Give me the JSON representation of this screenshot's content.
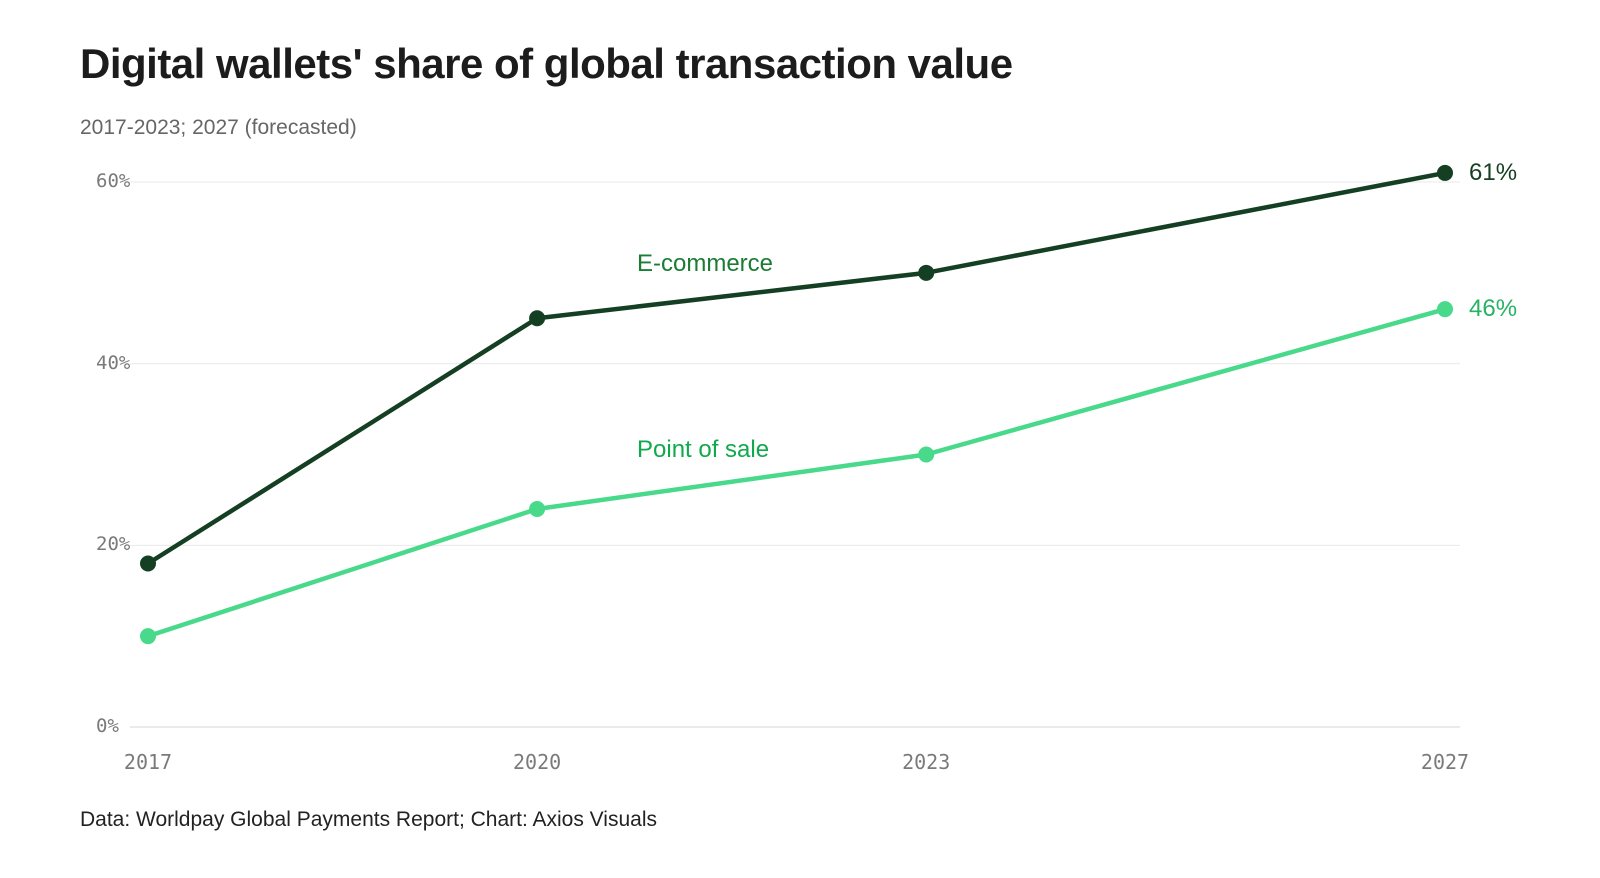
{
  "title": "Digital wallets' share of global transaction value",
  "subtitle": "2017-2023; 2027 (forecasted)",
  "footer": "Data: Worldpay Global Payments Report; Chart: Axios Visuals",
  "chart_data": {
    "type": "line",
    "x": [
      2017,
      2020,
      2023,
      2027
    ],
    "x_tick_labels": [
      "2017",
      "2020",
      "2023",
      "2027"
    ],
    "y_ticks": [
      0,
      20,
      40,
      60
    ],
    "y_tick_labels": [
      "0%",
      "20%",
      "40%",
      "60%"
    ],
    "ylim": [
      0,
      62
    ],
    "grid": true,
    "legend_position": "inline-labels",
    "series": [
      {
        "name": "E-commerce",
        "values": [
          18,
          45,
          50,
          61
        ],
        "color": "#153f23",
        "label_color": "#1b7c34",
        "end_label": "61%",
        "end_label_color": "#153f23"
      },
      {
        "name": "Point of sale",
        "values": [
          10,
          24,
          30,
          46
        ],
        "color": "#49d98b",
        "label_color": "#10a94c",
        "end_label": "46%",
        "end_label_color": "#27b364"
      }
    ]
  }
}
